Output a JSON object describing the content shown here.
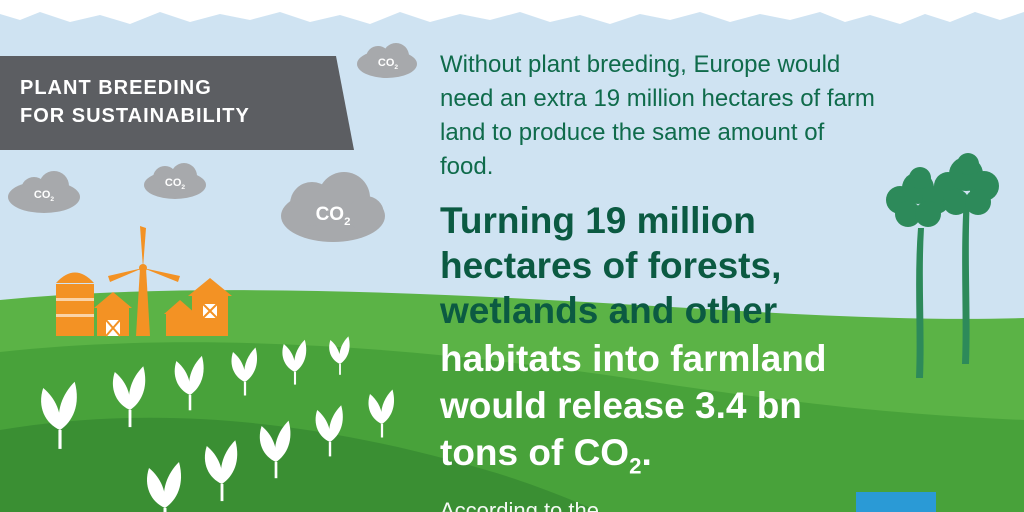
{
  "banner": {
    "line1": "PLANT BREEDING",
    "line2": "FOR SUSTAINABILITY"
  },
  "clouds": {
    "label": "CO",
    "sub": "2"
  },
  "intro_text": "Without plant breeding, Europe would need an extra 19 million hectares of farm land to produce the same amount of food.",
  "headline": {
    "dark_lines": [
      "Turning 19 million",
      "hectares of forests,",
      "wetlands and other"
    ],
    "light_lines": [
      "habitats into farmland",
      "would release 3.4 bn"
    ],
    "light_last_prefix": "tons of CO",
    "light_last_sub": "2",
    "light_last_suffix": "."
  },
  "footer_text": "According to the ...",
  "colors": {
    "sky": "#cfe3f2",
    "grass_light": "#5bb346",
    "grass_mid": "#48a23a",
    "grass_dark": "#3a8f33",
    "text_green": "#0f6b4b",
    "headline_dark_green": "#0b5a42",
    "banner_gray": "#5c5e62",
    "cloud_gray": "#a7a9ac",
    "barn_orange": "#f39224",
    "tree_green": "#2d8a5a"
  }
}
